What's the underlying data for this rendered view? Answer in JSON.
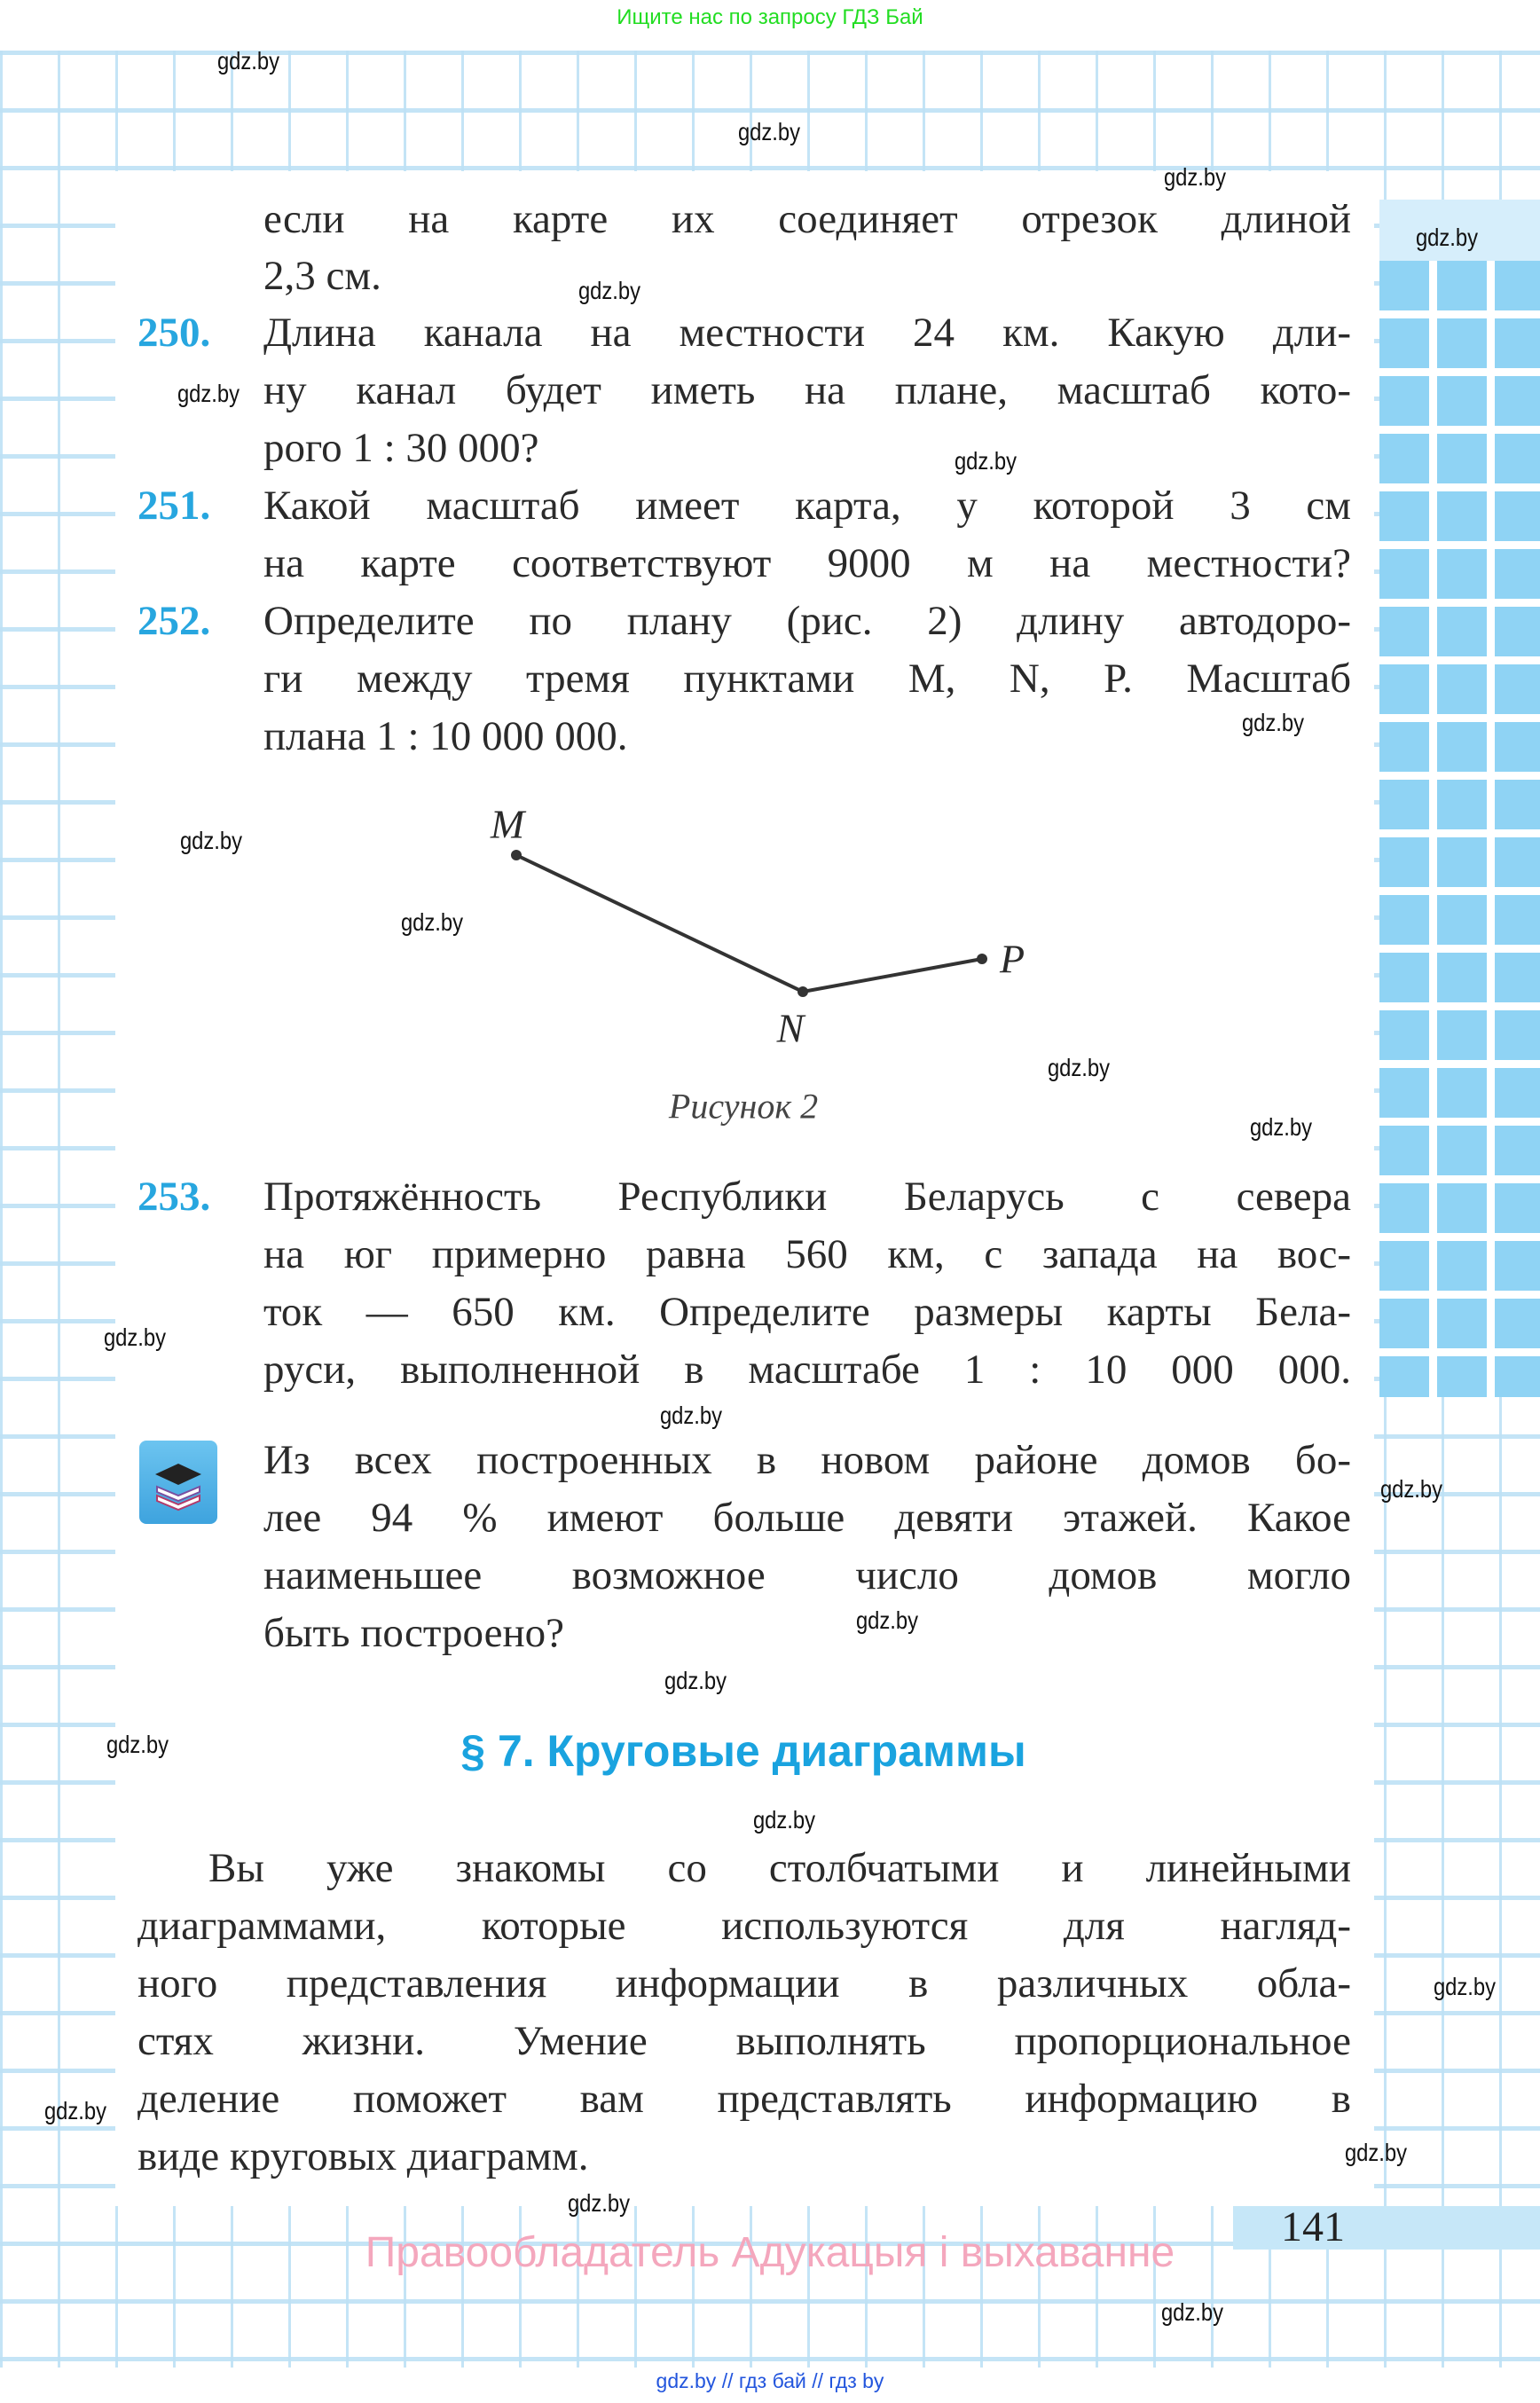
{
  "top_banner": "Ищите нас по запросу ГДЗ Бай",
  "watermark": "gdz.by",
  "continuation": [
    "если на карте их соединяет отрезок длиной",
    "2,3 см."
  ],
  "problems": [
    {
      "number": "250.",
      "lines": [
        "Длина канала на местности 24 км. Какую дли-",
        "ну канал будет иметь на плане, масштаб кото-",
        "рого 1 : 30 000?"
      ]
    },
    {
      "number": "251.",
      "lines": [
        "Какой масштаб имеет карта, у которой 3 см",
        "на карте соответствуют 9000 м на местности?"
      ]
    },
    {
      "number": "252.",
      "lines": [
        "Определите по плану (рис. 2) длину автодоро-",
        "ги между тремя пунктами M, N, P. Масштаб",
        "плана 1 : 10 000 000."
      ]
    },
    {
      "number": "253.",
      "lines": [
        "Протяжённость Республики Беларусь с севера",
        "на юг примерно равна 560 км, с запада на вос-",
        "ток — 650 км. Определите размеры карты Бела-",
        "руси, выполненной в масштабе 1 : 10 000 000."
      ]
    }
  ],
  "figure": {
    "points": {
      "M": "M",
      "N": "N",
      "P": "P"
    },
    "caption": "Рисунок 2"
  },
  "extra_task": {
    "icon": "graduation-cap-books-icon",
    "lines": [
      "Из всех построенных в новом районе домов бо-",
      "лее 94 % имеют больше девяти этажей. Какое",
      "наименьшее возможное число домов могло",
      "быть построено?"
    ]
  },
  "section_heading": "§ 7. Круговые диаграммы",
  "paragraph": [
    "Вы уже знакомы со столбчатыми и линейными",
    "диаграммами, которые используются для нагляд-",
    "ного представления информации в различных обла-",
    "стях жизни. Умение выполнять пропорциональное",
    "деление поможет вам представлять информацию в",
    "виде круговых диаграмм."
  ],
  "page_number": "141",
  "copyright": "Правообладатель Адукацыя і выхаванне",
  "footer_links": "gdz.by // гдз бай // гдз by",
  "colors": {
    "accent": "#27a6df",
    "grid": "#bee1f5",
    "tiles": "#8fd3f4",
    "copyright": "#f4a7bd",
    "banner": "#22dd22",
    "footer": "#2255dd"
  }
}
